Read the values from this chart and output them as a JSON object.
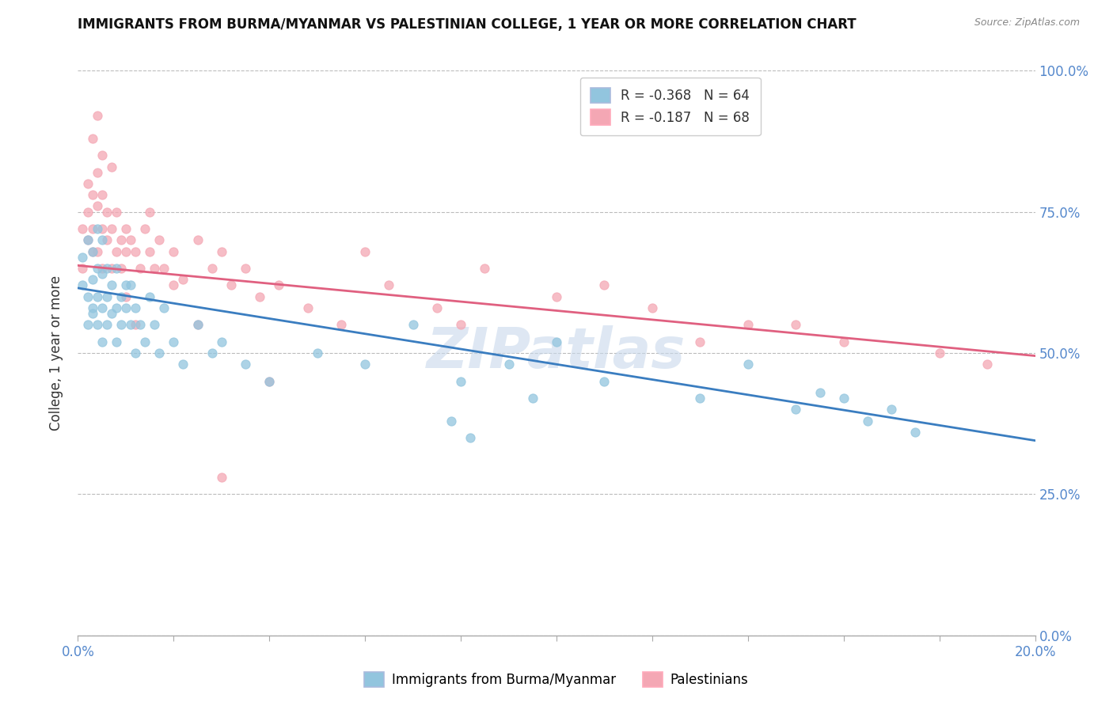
{
  "title": "IMMIGRANTS FROM BURMA/MYANMAR VS PALESTINIAN COLLEGE, 1 YEAR OR MORE CORRELATION CHART",
  "source": "Source: ZipAtlas.com",
  "ylabel": "College, 1 year or more",
  "ylabel_ticks": [
    "0.0%",
    "25.0%",
    "50.0%",
    "75.0%",
    "100.0%"
  ],
  "legend1_label": "R = -0.368   N = 64",
  "legend2_label": "R = -0.187   N = 68",
  "legend1_group": "Immigrants from Burma/Myanmar",
  "legend2_group": "Palestinians",
  "color_blue": "#92C5DE",
  "color_pink": "#F4A7B4",
  "color_blue_line": "#3A7DC0",
  "color_pink_line": "#E06080",
  "watermark": "ZIPatlas",
  "axis_label_color": "#5588CC",
  "xlim": [
    0.0,
    0.2
  ],
  "ylim": [
    0.0,
    1.0
  ],
  "blue_trendline_x": [
    0.0,
    0.2
  ],
  "blue_trendline_y": [
    0.615,
    0.345
  ],
  "pink_trendline_x": [
    0.0,
    0.2
  ],
  "pink_trendline_y": [
    0.655,
    0.495
  ],
  "blue_scatter_x": [
    0.001,
    0.001,
    0.002,
    0.002,
    0.002,
    0.003,
    0.003,
    0.003,
    0.003,
    0.004,
    0.004,
    0.004,
    0.004,
    0.005,
    0.005,
    0.005,
    0.005,
    0.006,
    0.006,
    0.006,
    0.007,
    0.007,
    0.008,
    0.008,
    0.008,
    0.009,
    0.009,
    0.01,
    0.01,
    0.011,
    0.011,
    0.012,
    0.012,
    0.013,
    0.014,
    0.015,
    0.016,
    0.017,
    0.018,
    0.02,
    0.022,
    0.025,
    0.028,
    0.03,
    0.035,
    0.04,
    0.05,
    0.06,
    0.07,
    0.08,
    0.09,
    0.1,
    0.11,
    0.13,
    0.14,
    0.15,
    0.155,
    0.16,
    0.165,
    0.17,
    0.175,
    0.078,
    0.082,
    0.095
  ],
  "blue_scatter_y": [
    0.62,
    0.67,
    0.55,
    0.6,
    0.7,
    0.58,
    0.63,
    0.68,
    0.57,
    0.65,
    0.6,
    0.72,
    0.55,
    0.58,
    0.64,
    0.7,
    0.52,
    0.65,
    0.6,
    0.55,
    0.62,
    0.57,
    0.58,
    0.65,
    0.52,
    0.6,
    0.55,
    0.62,
    0.58,
    0.55,
    0.62,
    0.58,
    0.5,
    0.55,
    0.52,
    0.6,
    0.55,
    0.5,
    0.58,
    0.52,
    0.48,
    0.55,
    0.5,
    0.52,
    0.48,
    0.45,
    0.5,
    0.48,
    0.55,
    0.45,
    0.48,
    0.52,
    0.45,
    0.42,
    0.48,
    0.4,
    0.43,
    0.42,
    0.38,
    0.4,
    0.36,
    0.38,
    0.35,
    0.42
  ],
  "pink_scatter_x": [
    0.001,
    0.001,
    0.002,
    0.002,
    0.002,
    0.003,
    0.003,
    0.003,
    0.004,
    0.004,
    0.004,
    0.005,
    0.005,
    0.005,
    0.006,
    0.006,
    0.007,
    0.007,
    0.008,
    0.008,
    0.009,
    0.009,
    0.01,
    0.01,
    0.011,
    0.012,
    0.013,
    0.014,
    0.015,
    0.016,
    0.017,
    0.018,
    0.02,
    0.022,
    0.025,
    0.028,
    0.03,
    0.032,
    0.035,
    0.038,
    0.042,
    0.048,
    0.055,
    0.065,
    0.075,
    0.085,
    0.1,
    0.12,
    0.14,
    0.16,
    0.18,
    0.19,
    0.003,
    0.004,
    0.005,
    0.007,
    0.01,
    0.012,
    0.015,
    0.02,
    0.025,
    0.03,
    0.04,
    0.06,
    0.08,
    0.11,
    0.13,
    0.15
  ],
  "pink_scatter_y": [
    0.65,
    0.72,
    0.7,
    0.8,
    0.75,
    0.68,
    0.78,
    0.72,
    0.76,
    0.68,
    0.82,
    0.72,
    0.78,
    0.65,
    0.7,
    0.75,
    0.72,
    0.65,
    0.68,
    0.75,
    0.7,
    0.65,
    0.72,
    0.68,
    0.7,
    0.68,
    0.65,
    0.72,
    0.68,
    0.65,
    0.7,
    0.65,
    0.68,
    0.63,
    0.7,
    0.65,
    0.68,
    0.62,
    0.65,
    0.6,
    0.62,
    0.58,
    0.55,
    0.62,
    0.58,
    0.65,
    0.6,
    0.58,
    0.55,
    0.52,
    0.5,
    0.48,
    0.88,
    0.92,
    0.85,
    0.83,
    0.6,
    0.55,
    0.75,
    0.62,
    0.55,
    0.28,
    0.45,
    0.68,
    0.55,
    0.62,
    0.52,
    0.55
  ]
}
